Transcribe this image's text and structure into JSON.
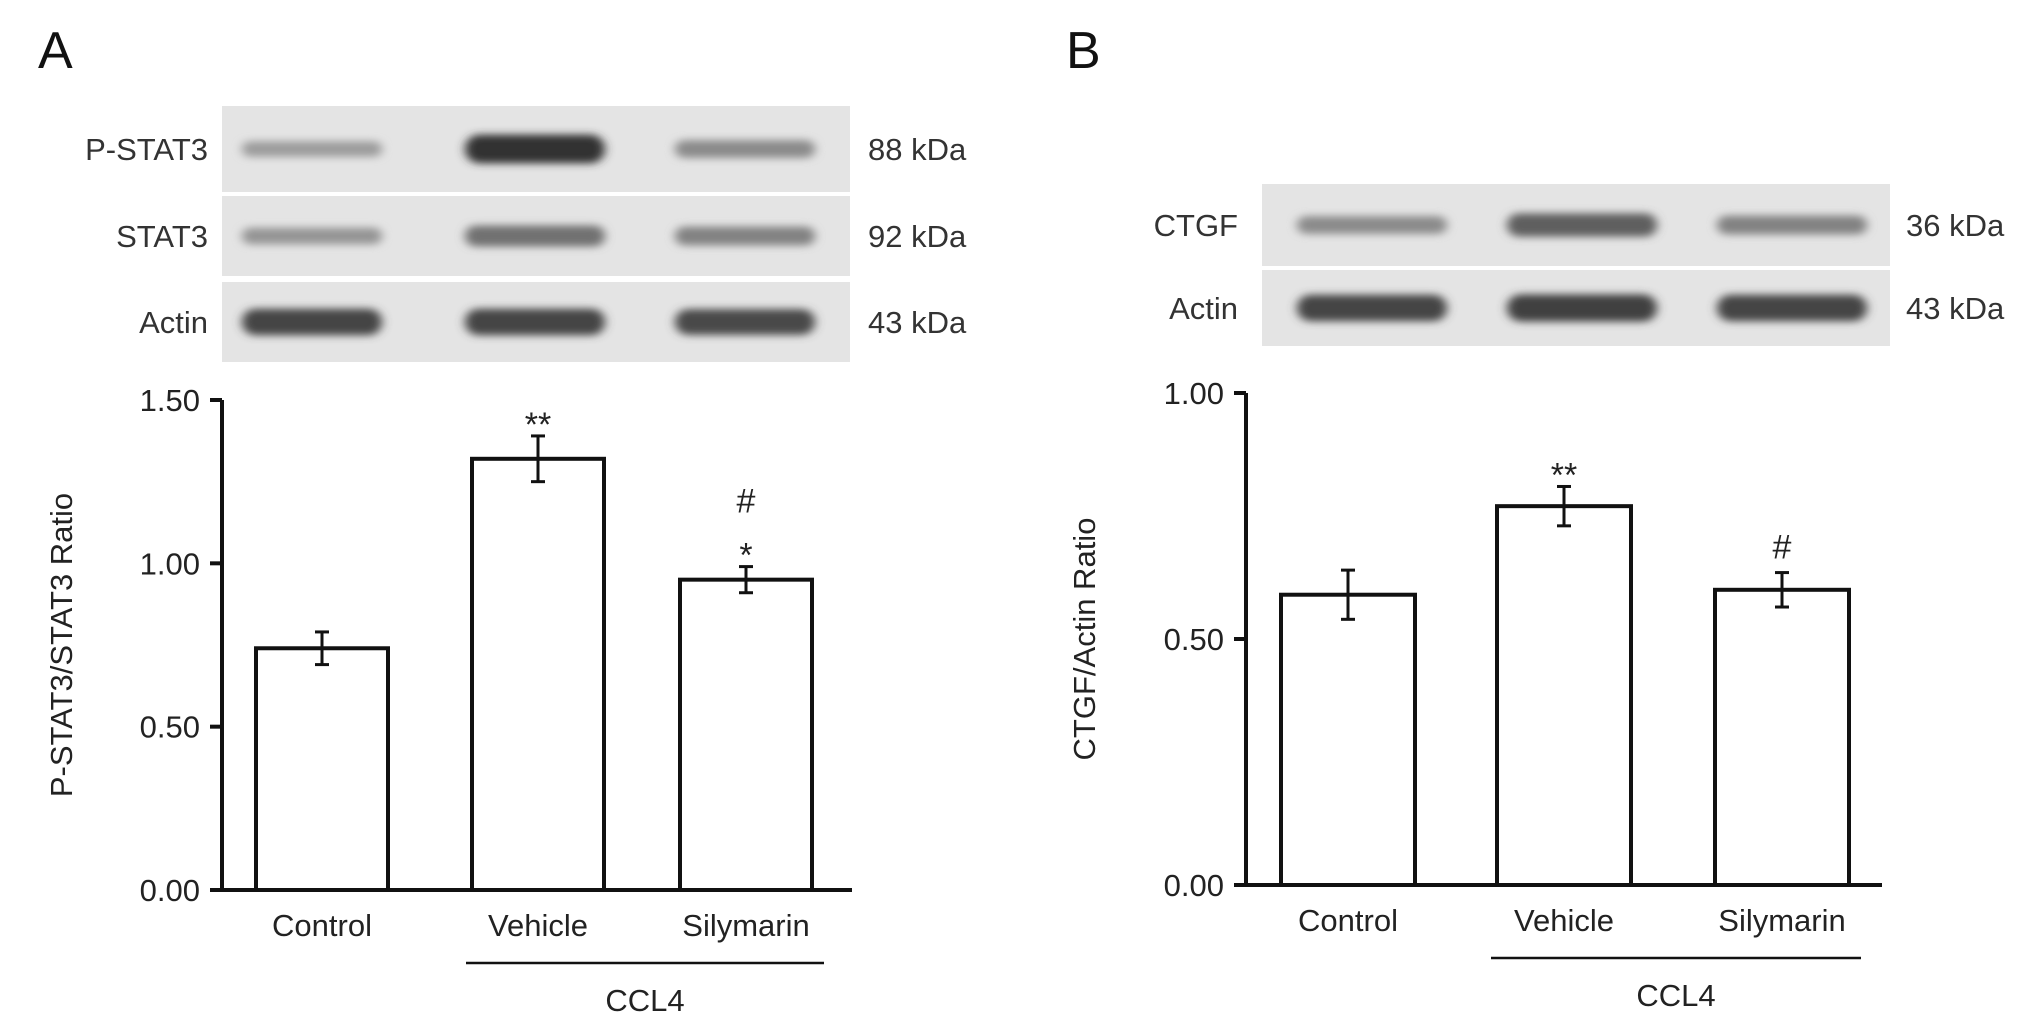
{
  "panels": [
    {
      "letter": "A",
      "blot": {
        "rows": [
          {
            "name": "P-STAT3",
            "size": "88 kDa",
            "intensity": [
              0.25,
              0.85,
              0.35
            ]
          },
          {
            "name": "STAT3",
            "size": "92 kDa",
            "intensity": [
              0.3,
              0.5,
              0.4
            ]
          },
          {
            "name": "Actin",
            "size": "43 kDa",
            "intensity": [
              0.75,
              0.75,
              0.72
            ]
          }
        ]
      },
      "chart_data": {
        "type": "bar",
        "categories": [
          "Control",
          "Vehicle",
          "Silymarin"
        ],
        "values": [
          0.74,
          1.32,
          0.95
        ],
        "errors": [
          0.05,
          0.07,
          0.04
        ],
        "significance": [
          "",
          "**",
          "#\n*"
        ],
        "ylabel": "P-STAT3/STAT3 Ratio",
        "xlabel": "",
        "group_label": "CCL4",
        "group_span": [
          "Vehicle",
          "Silymarin"
        ],
        "yticks": [
          "0.00",
          "0.50",
          "1.00",
          "1.50"
        ],
        "ylim": [
          0,
          1.5
        ],
        "bar_color": "#ffffff",
        "edge_color": "#111111"
      }
    },
    {
      "letter": "B",
      "blot": {
        "rows": [
          {
            "name": "CTGF",
            "size": "36 kDa",
            "intensity": [
              0.35,
              0.6,
              0.4
            ]
          },
          {
            "name": "Actin",
            "size": "43 kDa",
            "intensity": [
              0.75,
              0.78,
              0.75
            ]
          }
        ]
      },
      "chart_data": {
        "type": "bar",
        "categories": [
          "Control",
          "Vehicle",
          "Silymarin"
        ],
        "values": [
          0.59,
          0.77,
          0.6
        ],
        "errors": [
          0.05,
          0.04,
          0.035
        ],
        "significance": [
          "",
          "**",
          "#"
        ],
        "ylabel": "CTGF/Actin Ratio",
        "xlabel": "",
        "group_label": "CCL4",
        "group_span": [
          "Vehicle",
          "Silymarin"
        ],
        "yticks": [
          "0.00",
          "0.50",
          "1.00"
        ],
        "ylim": [
          0,
          1.0
        ],
        "bar_color": "#ffffff",
        "edge_color": "#111111"
      }
    }
  ]
}
